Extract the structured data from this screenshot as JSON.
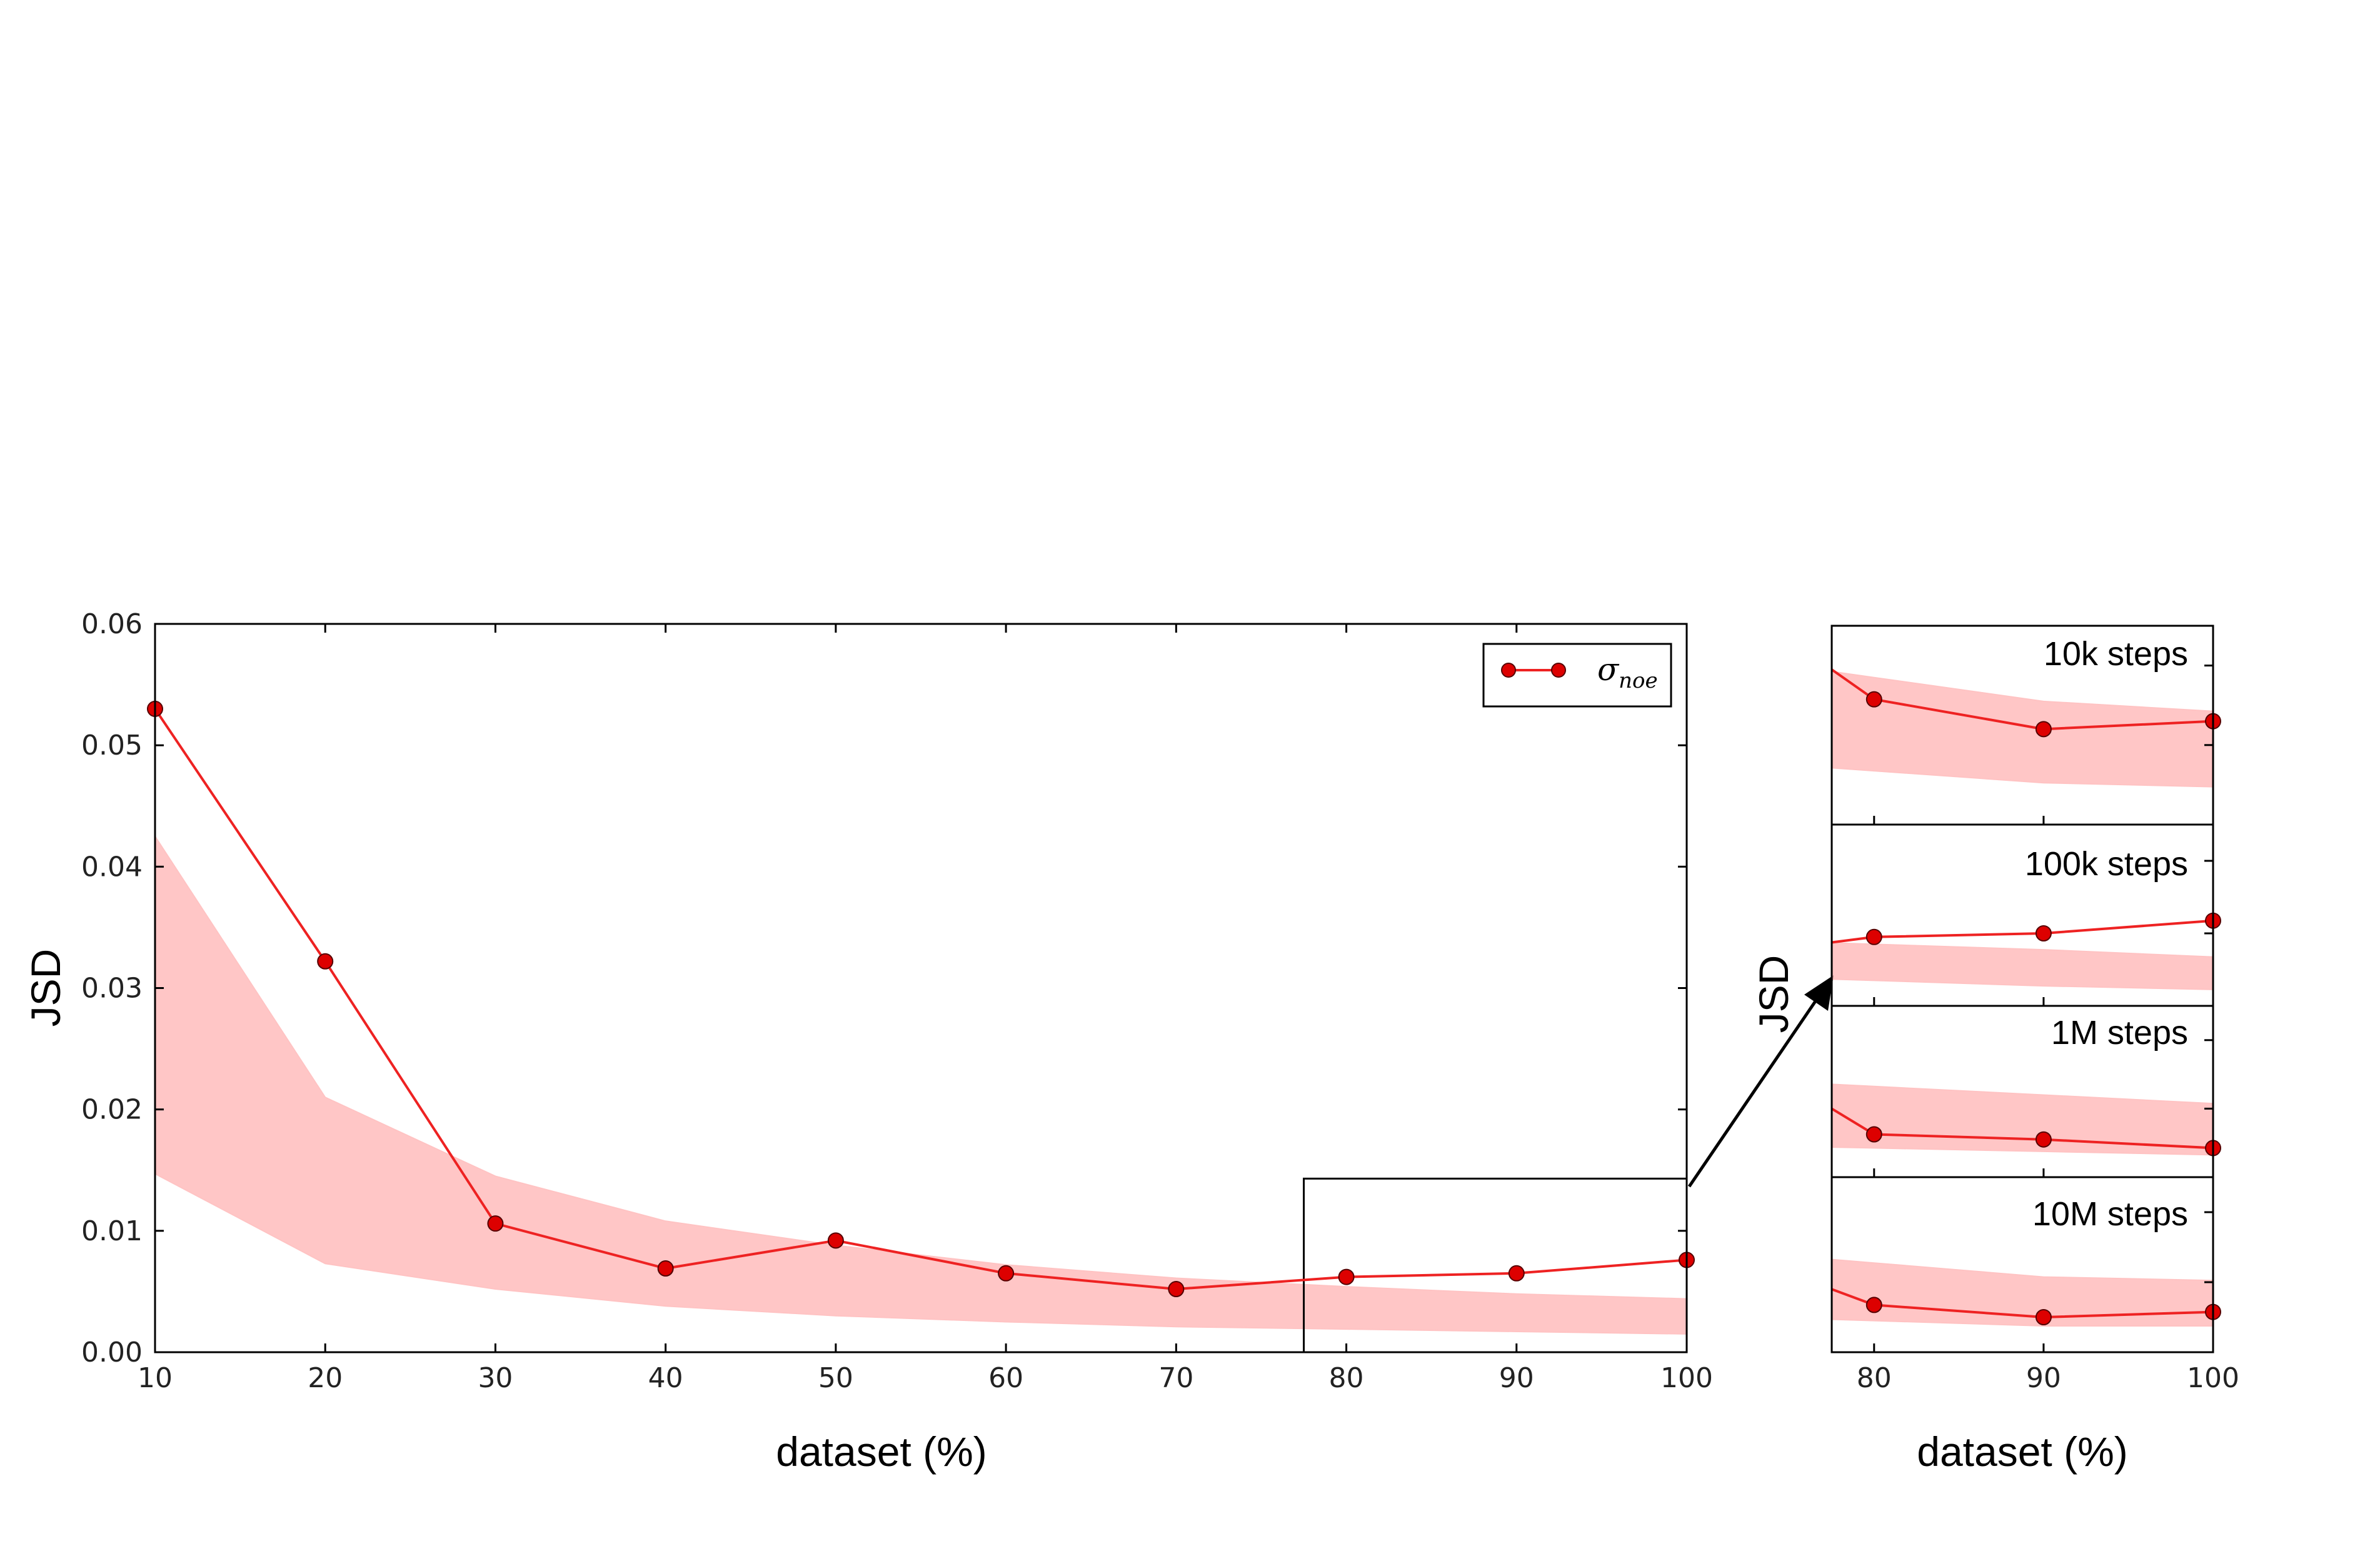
{
  "chart_data": [
    {
      "type": "line",
      "ylabel": "JSD",
      "xlabel": "dataset (%)",
      "x": [
        10,
        20,
        30,
        40,
        50,
        60,
        70,
        80,
        90,
        100
      ],
      "xlim": [
        10,
        100
      ],
      "ylim": [
        0.0,
        0.06
      ],
      "x_ticks": [
        "10",
        "20",
        "30",
        "40",
        "50",
        "60",
        "70",
        "80",
        "90",
        "100"
      ],
      "y_ticks": [
        "0.00",
        "0.01",
        "0.02",
        "0.03",
        "0.04",
        "0.05",
        "0.06"
      ],
      "series": [
        {
          "name": "σ_noe",
          "values": [
            0.053,
            0.0322,
            0.0106,
            0.0069,
            0.0092,
            0.0065,
            0.0052,
            0.0062,
            0.0065,
            0.0076
          ],
          "band_lower": [
            0.0147,
            0.0073,
            0.0052,
            0.0038,
            0.003,
            0.0025,
            0.0021,
            0.0019,
            0.0017,
            0.0015
          ],
          "band_upper": [
            0.0425,
            0.021,
            0.0145,
            0.0108,
            0.0088,
            0.0072,
            0.0061,
            0.0054,
            0.0048,
            0.0044
          ]
        }
      ],
      "legend": {
        "position": "top-right",
        "label_main": "σ",
        "label_sub": "noe"
      },
      "zoom_box": {
        "x_range": [
          77.5,
          100
        ],
        "y_range": [
          0.0,
          0.0143
        ]
      },
      "color": "#ee2222",
      "band_color": "#ffb3b3",
      "grid": false
    },
    {
      "type": "line",
      "title": "10k steps",
      "ylabel": "JSD",
      "x": [
        80,
        90,
        100
      ],
      "xlim": [
        77.5,
        100
      ],
      "ylim": [
        0,
        1
      ],
      "values": [
        0.63,
        0.48,
        0.52
      ],
      "start_value": 0.78,
      "band_lower": [
        0.27,
        0.21,
        0.19
      ],
      "band_upper": [
        0.74,
        0.62,
        0.57
      ]
    },
    {
      "type": "line",
      "title": "100k steps",
      "ylabel": "JSD",
      "x": [
        80,
        90,
        100
      ],
      "xlim": [
        77.5,
        100
      ],
      "ylim": [
        0,
        1
      ],
      "values": [
        0.38,
        0.4,
        0.47
      ],
      "start_value": 0.35,
      "band_lower": [
        0.14,
        0.11,
        0.09
      ],
      "band_upper": [
        0.34,
        0.31,
        0.27
      ]
    },
    {
      "type": "line",
      "title": "1M steps",
      "ylabel": "JSD",
      "x": [
        80,
        90,
        100
      ],
      "xlim": [
        77.5,
        100
      ],
      "ylim": [
        0,
        1
      ],
      "values": [
        0.25,
        0.22,
        0.17
      ],
      "start_value": 0.4,
      "band_lower": [
        0.17,
        0.15,
        0.13
      ],
      "band_upper": [
        0.53,
        0.48,
        0.43
      ]
    },
    {
      "type": "line",
      "title": "10M steps",
      "ylabel": "JSD",
      "xlabel": "dataset (%)",
      "x": [
        80,
        90,
        100
      ],
      "xlim": [
        77.5,
        100
      ],
      "ylim": [
        0,
        1
      ],
      "values": [
        0.27,
        0.2,
        0.23
      ],
      "start_value": 0.36,
      "band_lower": [
        0.18,
        0.15,
        0.15
      ],
      "band_upper": [
        0.51,
        0.43,
        0.41
      ],
      "x_ticks": [
        "80",
        "90",
        "100"
      ]
    }
  ]
}
